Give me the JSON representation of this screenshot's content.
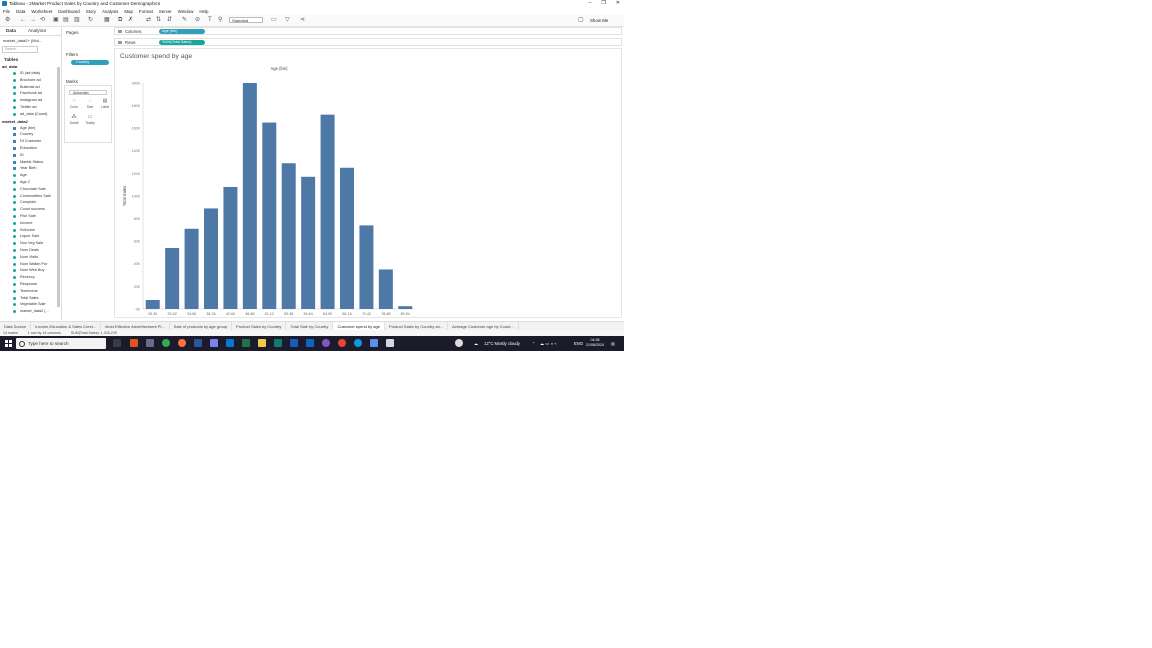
{
  "window": {
    "title": "Tableau - 2Market Product Sales by Country and Customer Demographics",
    "controls": [
      "–",
      "❐",
      "✕"
    ]
  },
  "menu": [
    "File",
    "Data",
    "Worksheet",
    "Dashboard",
    "Story",
    "Analysis",
    "Map",
    "Format",
    "Server",
    "Window",
    "Help"
  ],
  "toolbar": {
    "fit": "Standard",
    "show_me": "Show Me"
  },
  "datapane": {
    "tabs": [
      "Data",
      "Analytics"
    ],
    "source": "market_data2+ (Mul...",
    "search_placeholder": "Search",
    "tables_label": "Tables",
    "tables": [
      {
        "name": "ad_data",
        "fields": [
          "ID (ad data)",
          "Brochure ad",
          "Bulkmail ad",
          "Facebook ad",
          "Instagram ad",
          "Twitter ad",
          "ad_data (Count)"
        ]
      },
      {
        "name": "market_data2",
        "fields": [
          "Age (bin)",
          "Country",
          "Dt Customer",
          "Education",
          "ID",
          "Marital Status",
          "Year Birth",
          "Age",
          "Age 2",
          "Chocolate Sale",
          "Commodities Sale",
          "Complain",
          "Count success",
          "Fish Sale",
          "Income",
          "Kidhome",
          "Liquor Sale",
          "Non Veg Sale",
          "Num Deals",
          "Num Visits",
          "Num Walkin Pur",
          "Num Web Buy",
          "Recency",
          "Response",
          "Teenhome",
          "Total Sales",
          "Vegetable Sale",
          "market_data2 (..."
        ]
      }
    ]
  },
  "cards": {
    "pages_label": "Pages",
    "filters_label": "Filters",
    "filter_pill": "Country",
    "marks_label": "Marks",
    "marks_type": "Automatic",
    "mark_buttons": [
      "Color",
      "Size",
      "Label",
      "Detail",
      "Tooltip"
    ]
  },
  "shelves": {
    "columns_label": "Columns",
    "columns_pill": "Age (bin)",
    "rows_label": "Rows",
    "rows_pill": "SUM(Total Sales)"
  },
  "chart_data": {
    "type": "bar",
    "title": "Customer spend by age",
    "xlabel": "Age (bin)",
    "ylabel": "Total Sales",
    "categories": [
      "25-30",
      "29-02",
      "34-06",
      "38-34",
      "42-60",
      "46-86",
      "51-12",
      "55-38",
      "59-64",
      "63-90",
      "68-16",
      "72-42",
      "76-68",
      "80-94"
    ],
    "values": [
      8000,
      54000,
      71000,
      89000,
      108000,
      200000,
      165000,
      129000,
      117000,
      172000,
      125000,
      74000,
      35000,
      2500
    ],
    "yticks": [
      "0K",
      "20K",
      "40K",
      "60K",
      "80K",
      "100K",
      "120K",
      "140K",
      "160K",
      "180K",
      "200K"
    ],
    "ylim": [
      0,
      200000
    ],
    "bar_color": "#4e79a7",
    "grid": false
  },
  "sheet_tabs": [
    "Data Source",
    "Income,Education & Sales Corel...",
    "Most Effective Advertisement Pl...",
    "Sale of products by age group",
    "Product Sales by Country",
    "Total Sale by Country",
    "Customer spend by age",
    "Product Sales by Country an...",
    "Average Customer age by Count..."
  ],
  "active_sheet": "Customer spend by age",
  "status": {
    "marks": "14 marks",
    "dims": "1 row by 14 columns",
    "sum": "SUM(Total Sales): 1,343,239"
  },
  "taskbar": {
    "search_placeholder": "Type here to search",
    "weather": "12°C  Mostly cloudy",
    "lang": "ENG",
    "time": "04:38",
    "date": "21/08/2024"
  }
}
